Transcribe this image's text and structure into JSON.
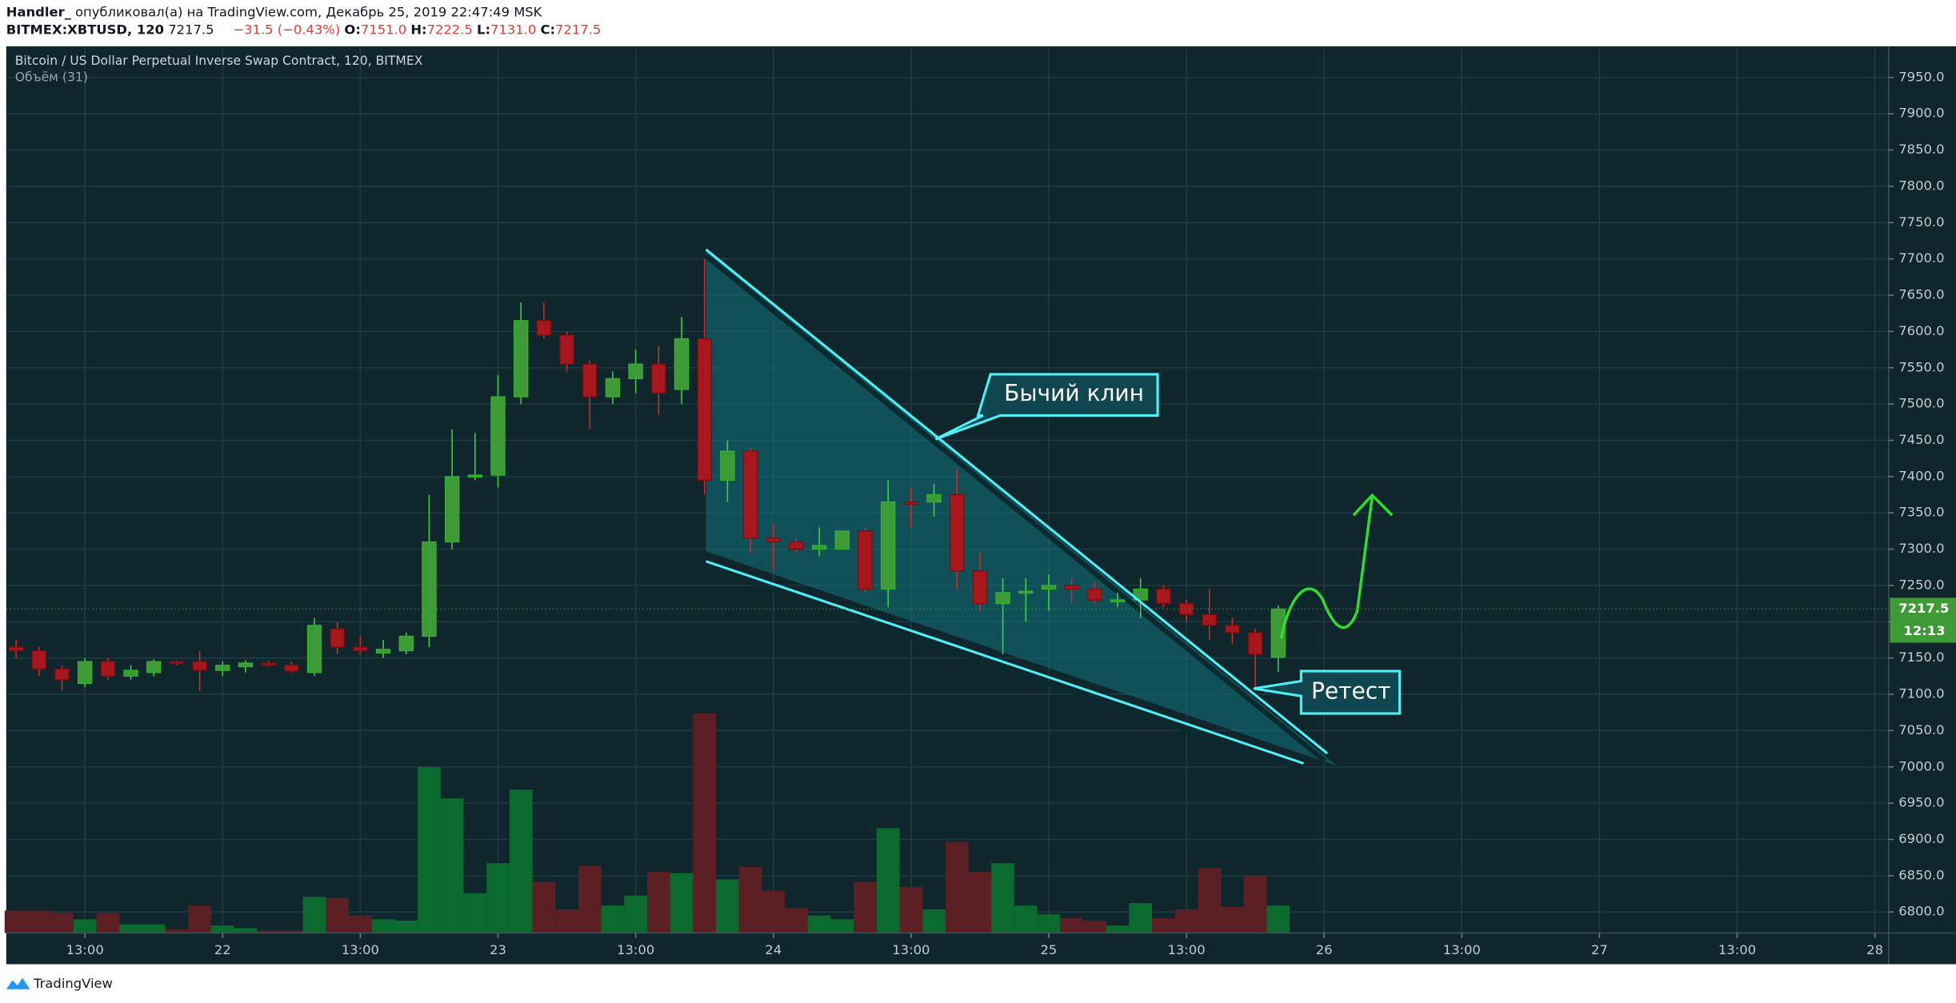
{
  "header": {
    "author": "Handler_",
    "published": "опубликовал(а) на TradingView.com, Декабрь 25, 2019 22:47:49 MSK",
    "symbol": "BITMEX:XBTUSD, 120",
    "price": "7217.5",
    "change": "−31.5 (−0.43%)",
    "quote": [
      {
        "label": "O:",
        "value": "7151.0"
      },
      {
        "label": "H:",
        "value": "7222.5"
      },
      {
        "label": "L:",
        "value": "7131.0"
      },
      {
        "label": "C:",
        "value": "7217.5"
      }
    ]
  },
  "footer": {
    "brand": "TradingView"
  },
  "chart_data": {
    "type": "candlestick",
    "title": "Bitcoin / US Dollar Perpetual Inverse Swap Contract, 120, BITMEX",
    "volume_label": "Объём (31)",
    "x": [
      0,
      1,
      2,
      3,
      4,
      5,
      6,
      7,
      8,
      9,
      10,
      11,
      12,
      13,
      14,
      15,
      16,
      17,
      18,
      19,
      20,
      21,
      22,
      23,
      24,
      25,
      26,
      27,
      28,
      29,
      30,
      31,
      32,
      33,
      34,
      35,
      36,
      37,
      38,
      39,
      40,
      41,
      42,
      43,
      44,
      45,
      46,
      47,
      48,
      49,
      50,
      51,
      52,
      53,
      54,
      55
    ],
    "open": [
      7165,
      7160,
      7135,
      7115,
      7145,
      7125,
      7130,
      7145,
      7145,
      7133,
      7138,
      7143,
      7140,
      7130,
      7190,
      7165,
      7157,
      7160,
      7180,
      7310,
      7400,
      7402,
      7510,
      7615,
      7595,
      7555,
      7510,
      7535,
      7555,
      7520,
      7590,
      7395,
      7435,
      7315,
      7310,
      7300,
      7300,
      7325,
      7245,
      7365,
      7365,
      7375,
      7270,
      7225,
      7240,
      7245,
      7250,
      7245,
      7228,
      7230,
      7245,
      7225,
      7210,
      7195,
      7185,
      7151
    ],
    "high": [
      7175,
      7165,
      7140,
      7150,
      7150,
      7140,
      7148,
      7147,
      7160,
      7145,
      7147,
      7146,
      7145,
      7205,
      7200,
      7180,
      7175,
      7185,
      7375,
      7465,
      7460,
      7540,
      7640,
      7640,
      7600,
      7560,
      7545,
      7575,
      7580,
      7620,
      7700,
      7450,
      7440,
      7335,
      7315,
      7330,
      7325,
      7330,
      7395,
      7385,
      7390,
      7410,
      7295,
      7260,
      7260,
      7265,
      7260,
      7255,
      7240,
      7260,
      7250,
      7230,
      7245,
      7205,
      7190,
      7222.5
    ],
    "low": [
      7150,
      7125,
      7105,
      7110,
      7120,
      7120,
      7125,
      7140,
      7105,
      7125,
      7130,
      7138,
      7130,
      7125,
      7155,
      7155,
      7150,
      7155,
      7165,
      7300,
      7395,
      7385,
      7500,
      7590,
      7545,
      7465,
      7500,
      7515,
      7485,
      7500,
      7375,
      7365,
      7295,
      7270,
      7295,
      7290,
      7300,
      7240,
      7220,
      7330,
      7345,
      7245,
      7215,
      7155,
      7200,
      7215,
      7225,
      7225,
      7220,
      7205,
      7220,
      7200,
      7175,
      7170,
      7110,
      7131
    ],
    "close": [
      7160,
      7135,
      7120,
      7145,
      7125,
      7133,
      7145,
      7143,
      7133,
      7140,
      7143,
      7140,
      7132,
      7195,
      7165,
      7160,
      7162,
      7180,
      7310,
      7400,
      7402,
      7510,
      7615,
      7595,
      7555,
      7510,
      7535,
      7555,
      7515,
      7590,
      7395,
      7435,
      7315,
      7310,
      7300,
      7305,
      7325,
      7245,
      7365,
      7362,
      7375,
      7270,
      7225,
      7240,
      7242,
      7250,
      7245,
      7230,
      7230,
      7245,
      7225,
      7210,
      7195,
      7185,
      7155,
      7217.5
    ],
    "volume": [
      18,
      18,
      16,
      11,
      16,
      7,
      7,
      3,
      22,
      6,
      4,
      2,
      2,
      29,
      28,
      14,
      11,
      10,
      133,
      108,
      32,
      56,
      115,
      41,
      19,
      54,
      22,
      30,
      49,
      48,
      176,
      43,
      53,
      34,
      20,
      14,
      11,
      41,
      84,
      37,
      19,
      73,
      49,
      56,
      22,
      15,
      12,
      10,
      6,
      24,
      12,
      19,
      52,
      21,
      46,
      22
    ],
    "up_color": "#3d9a35",
    "down_color": "#a8171b",
    "volume_up_color": "#0b6b2e",
    "volume_down_color": "#5c2024",
    "price_tag": "7217.5",
    "countdown": "12:13",
    "xlim": [
      -0.43,
      81.6
    ],
    "xticks": [
      {
        "value": 3,
        "label": "13:00"
      },
      {
        "value": 9,
        "label": "22"
      },
      {
        "value": 15,
        "label": "13:00"
      },
      {
        "value": 21,
        "label": "23"
      },
      {
        "value": 27,
        "label": "13:00"
      },
      {
        "value": 33,
        "label": "24"
      },
      {
        "value": 39,
        "label": "13:00"
      },
      {
        "value": 45,
        "label": "25"
      },
      {
        "value": 51,
        "label": "13:00"
      },
      {
        "value": 57,
        "label": "26"
      },
      {
        "value": 63,
        "label": "13:00"
      },
      {
        "value": 69,
        "label": "27"
      },
      {
        "value": 75,
        "label": "13:00"
      },
      {
        "value": 81,
        "label": "28"
      }
    ],
    "ylim": [
      6771,
      7993
    ],
    "yticks": [
      {
        "value": 6800,
        "label": "6800.0"
      },
      {
        "value": 6850,
        "label": "6850.0"
      },
      {
        "value": 6900,
        "label": "6900.0"
      },
      {
        "value": 6950,
        "label": "6950.0"
      },
      {
        "value": 7000,
        "label": "7000.0"
      },
      {
        "value": 7050,
        "label": "7050.0"
      },
      {
        "value": 7100,
        "label": "7100.0"
      },
      {
        "value": 7150,
        "label": "7150.0"
      },
      {
        "value": 7200,
        "label": "7200.0"
      },
      {
        "value": 7250,
        "label": "7250.0"
      },
      {
        "value": 7300,
        "label": "7300.0"
      },
      {
        "value": 7350,
        "label": "7350.0"
      },
      {
        "value": 7400,
        "label": "7400.0"
      },
      {
        "value": 7450,
        "label": "7450.0"
      },
      {
        "value": 7500,
        "label": "7500.0"
      },
      {
        "value": 7550,
        "label": "7550.0"
      },
      {
        "value": 7600,
        "label": "7600.0"
      },
      {
        "value": 7650,
        "label": "7650.0"
      },
      {
        "value": 7700,
        "label": "7700.0"
      },
      {
        "value": 7750,
        "label": "7750.0"
      },
      {
        "value": 7800,
        "label": "7800.0"
      },
      {
        "value": 7850,
        "label": "7850.0"
      },
      {
        "value": 7900,
        "label": "7900.0"
      },
      {
        "value": 7950,
        "label": "7950.0"
      }
    ],
    "grid": true,
    "annotations": [
      {
        "text": "Бычий клин"
      },
      {
        "text": "Ретест"
      }
    ]
  }
}
